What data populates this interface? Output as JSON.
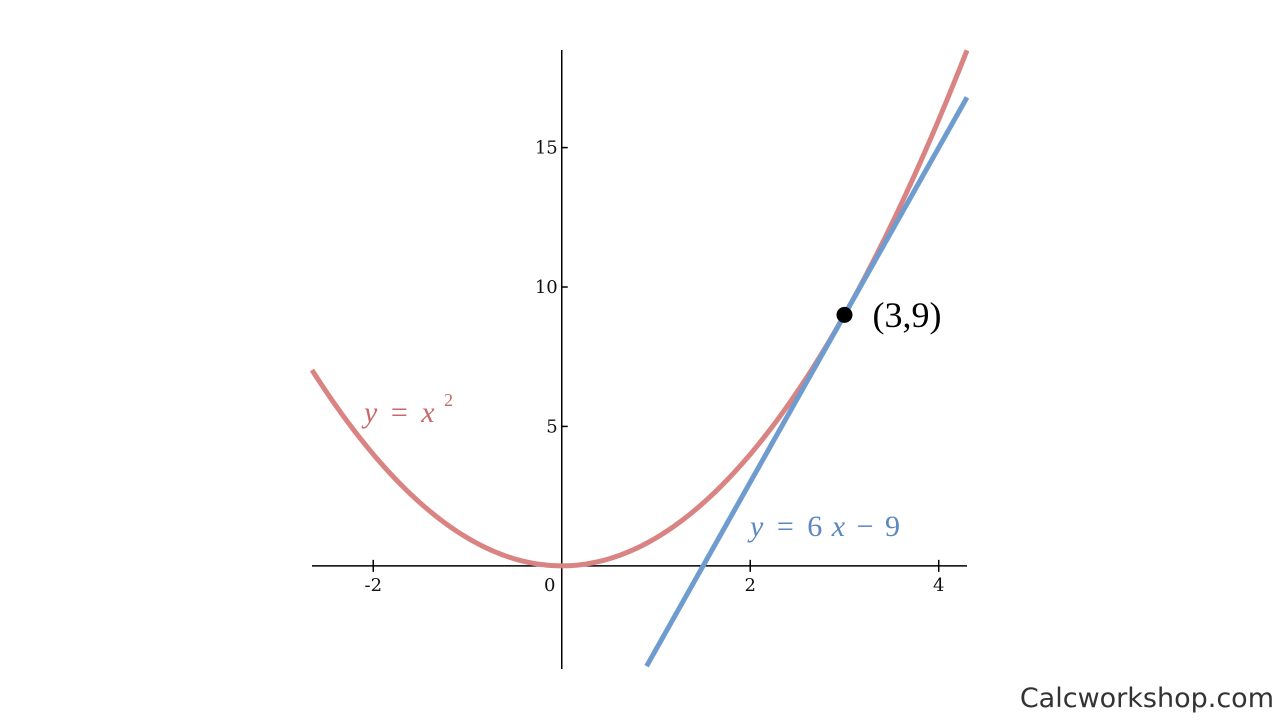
{
  "chart_data": {
    "type": "line",
    "xlim": [
      -2.65,
      4.3
    ],
    "ylim": [
      -3.7,
      18.5
    ],
    "x_ticks": [
      "-2",
      "0",
      "2",
      "4"
    ],
    "y_ticks": [
      "5",
      "10",
      "15"
    ],
    "grid": false,
    "series": [
      {
        "name": "y = x²",
        "function": "x^2",
        "x_range": [
          -2.65,
          4.3
        ],
        "color": "#d98382"
      },
      {
        "name": "y = 6x − 9",
        "function": "6x-9",
        "x_range": [
          0.9,
          4.3
        ],
        "color": "#6f9ccf"
      }
    ],
    "point": {
      "x": 3,
      "y": 9,
      "label": "(3,9)"
    },
    "labels": {
      "curve": {
        "y": "y",
        "eq": "=",
        "x": "x",
        "exp": "2"
      },
      "tangent": {
        "y": "y",
        "eq": "=",
        "coef": "6",
        "x": "x",
        "op": "−",
        "const": "9"
      }
    }
  },
  "watermark": "Calcworkshop.com"
}
